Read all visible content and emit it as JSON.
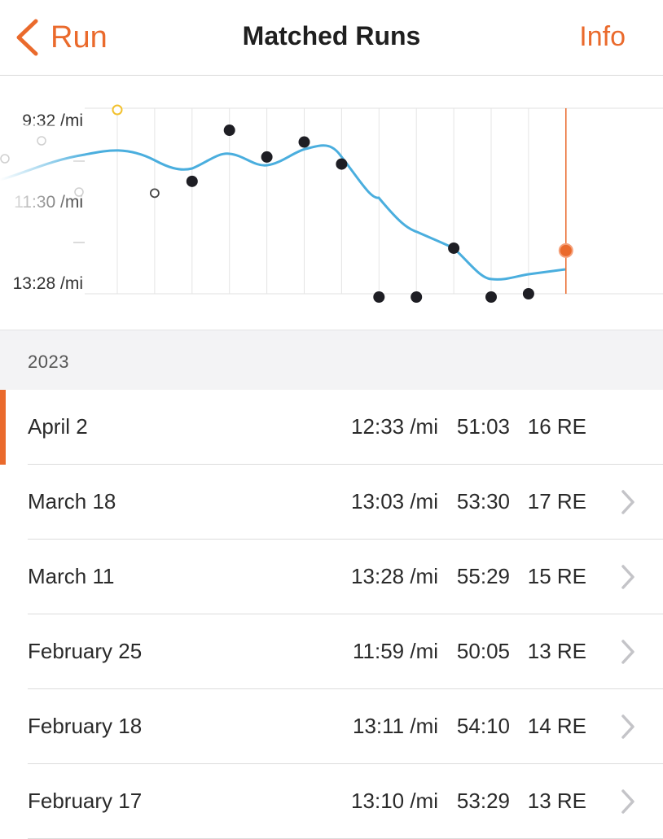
{
  "nav": {
    "back_label": "Run",
    "title": "Matched Runs",
    "info_label": "Info",
    "back_icon": "chevron-left-icon"
  },
  "colors": {
    "accent": "#ea6a2c",
    "trend_line": "#4aaede",
    "point": "#1e1e24",
    "highlight_point": "#f2c12e"
  },
  "chart_data": {
    "type": "scatter",
    "y_tick_labels": [
      "9:32 /mi",
      "11:30 /mi",
      "13:28 /mi"
    ],
    "y_axis_seconds_range": [
      572,
      808
    ],
    "y_inverted": true,
    "points": [
      {
        "pace": "9:28 /mi",
        "style": "hollow-yellow"
      },
      {
        "pace": "11:20 /mi",
        "style": "hollow"
      },
      {
        "pace": "11:05 /mi",
        "style": "filled"
      },
      {
        "pace": "10:00 /mi",
        "style": "filled"
      },
      {
        "pace": "10:34 /mi",
        "style": "filled"
      },
      {
        "pace": "10:15 /mi",
        "style": "filled"
      },
      {
        "pace": "10:43 /mi",
        "style": "filled"
      },
      {
        "pace": "13:35 /mi",
        "style": "filled"
      },
      {
        "pace": "13:35 /mi",
        "style": "filled"
      },
      {
        "pace": "12:30 /mi",
        "style": "filled"
      },
      {
        "pace": "13:50 /mi",
        "style": "filled"
      },
      {
        "pace": "13:28 /mi",
        "style": "filled"
      },
      {
        "pace": "12:33 /mi",
        "style": "current"
      }
    ],
    "grid": true
  },
  "section": {
    "year": "2023"
  },
  "runs": [
    {
      "date": "April 2",
      "pace": "12:33 /mi",
      "time": "51:03",
      "effort": "16 RE",
      "active": true
    },
    {
      "date": "March 18",
      "pace": "13:03 /mi",
      "time": "53:30",
      "effort": "17 RE"
    },
    {
      "date": "March 11",
      "pace": "13:28 /mi",
      "time": "55:29",
      "effort": "15 RE"
    },
    {
      "date": "February 25",
      "pace": "11:59 /mi",
      "time": "50:05",
      "effort": "13 RE"
    },
    {
      "date": "February 18",
      "pace": "13:11 /mi",
      "time": "54:10",
      "effort": "14 RE"
    },
    {
      "date": "February 17",
      "pace": "13:10 /mi",
      "time": "53:29",
      "effort": "13 RE"
    }
  ]
}
